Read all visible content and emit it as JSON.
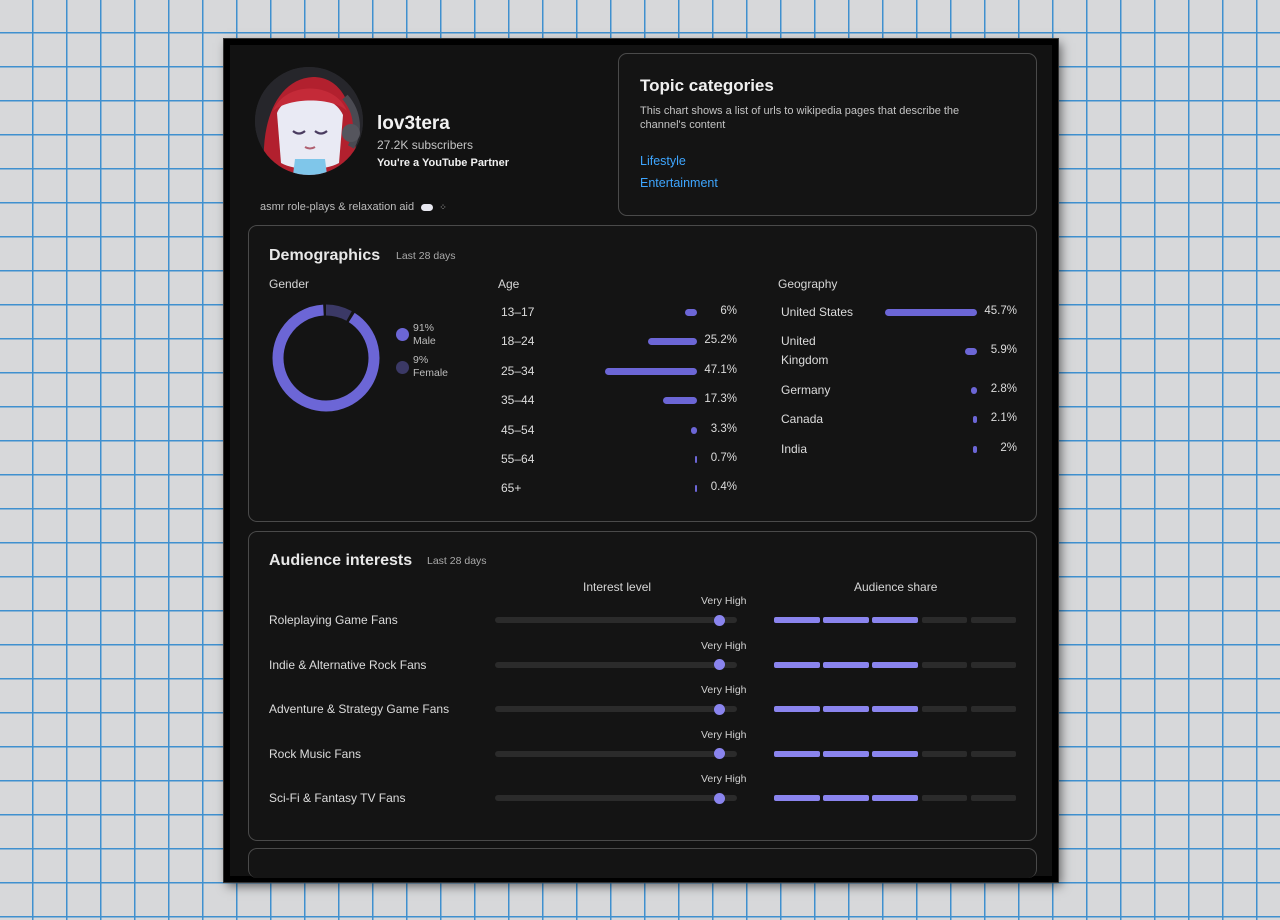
{
  "channel": {
    "name": "lov3tera",
    "subscribers": "27.2K subscribers",
    "partner": "You're a YouTube Partner",
    "tagline": "asmr role-plays & relaxation aid",
    "tagline_suffix": "⁘"
  },
  "topic": {
    "title": "Topic categories",
    "description": "This chart shows a list of urls to wikipedia pages that describe the channel's content",
    "links": [
      "Lifestyle",
      "Entertainment"
    ]
  },
  "demographics": {
    "title": "Demographics",
    "period": "Last 28 days",
    "gender": {
      "heading": "Gender",
      "male_pct": "91%",
      "male_label": "Male",
      "female_pct": "9%",
      "female_label": "Female",
      "male_value": 91,
      "female_value": 9
    },
    "age": {
      "heading": "Age",
      "rows": [
        {
          "label": "13–17",
          "value": "6%",
          "pct": 6
        },
        {
          "label": "18–24",
          "value": "25.2%",
          "pct": 25.2
        },
        {
          "label": "25–34",
          "value": "47.1%",
          "pct": 47.1
        },
        {
          "label": "35–44",
          "value": "17.3%",
          "pct": 17.3
        },
        {
          "label": "45–54",
          "value": "3.3%",
          "pct": 3.3
        },
        {
          "label": "55–64",
          "value": "0.7%",
          "pct": 0.7
        },
        {
          "label": "65+",
          "value": "0.4%",
          "pct": 0.4
        }
      ]
    },
    "geography": {
      "heading": "Geography",
      "rows": [
        {
          "label": "United States",
          "value": "45.7%",
          "pct": 45.7
        },
        {
          "label": "United Kingdom",
          "value": "5.9%",
          "pct": 5.9
        },
        {
          "label": "Germany",
          "value": "2.8%",
          "pct": 2.8
        },
        {
          "label": "Canada",
          "value": "2.1%",
          "pct": 2.1
        },
        {
          "label": "India",
          "value": "2%",
          "pct": 2
        }
      ]
    }
  },
  "interests": {
    "title": "Audience interests",
    "period": "Last 28 days",
    "interest_heading": "Interest level",
    "share_heading": "Audience share",
    "rows": [
      {
        "label": "Roleplaying Game Fans",
        "level": "Very High",
        "level_fraction": 0.95,
        "share_segments": 3
      },
      {
        "label": "Indie & Alternative Rock Fans",
        "level": "Very High",
        "level_fraction": 0.95,
        "share_segments": 3
      },
      {
        "label": "Adventure & Strategy Game Fans",
        "level": "Very High",
        "level_fraction": 0.95,
        "share_segments": 3
      },
      {
        "label": "Rock Music Fans",
        "level": "Very High",
        "level_fraction": 0.95,
        "share_segments": 3
      },
      {
        "label": "Sci-Fi & Fantasy TV Fans",
        "level": "Very High",
        "level_fraction": 0.95,
        "share_segments": 3
      }
    ]
  },
  "colors": {
    "accent": "#6c66d6",
    "accent_light": "#8a84ee",
    "female": "#3b3966",
    "link": "#3ea6ff",
    "track": "#2b2b2b"
  }
}
